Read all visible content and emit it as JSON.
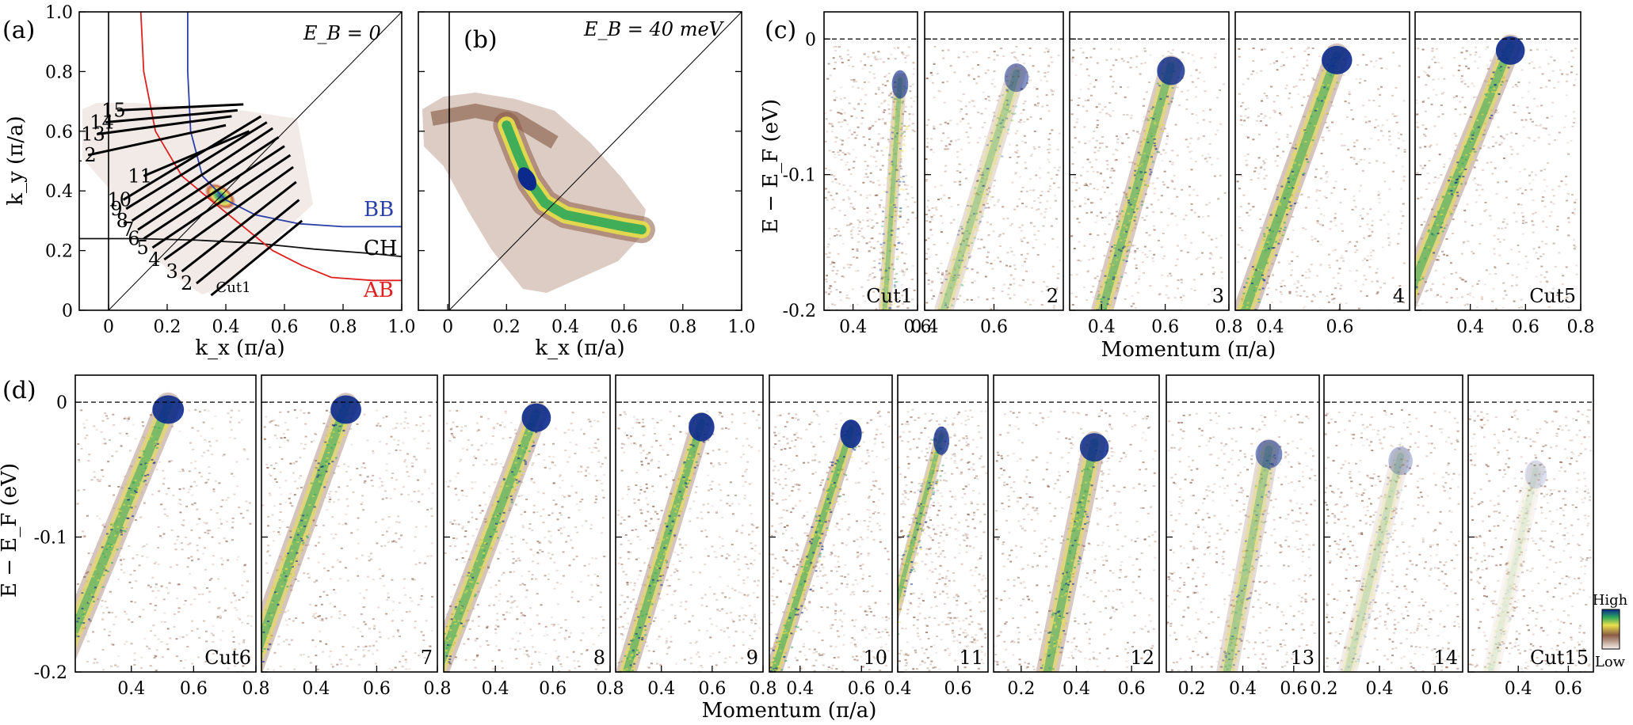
{
  "panels": {
    "a": {
      "label": "(a)",
      "eb_label": "E_B = 0",
      "xlabel": "k_x (π/a)",
      "ylabel": "k_y (π/a)",
      "xticks": [
        "0",
        "0.2",
        "0.4",
        "0.6",
        "0.8",
        "1.0"
      ],
      "yticks": [
        "0",
        "0.2",
        "0.4",
        "0.6",
        "0.8",
        "1.0"
      ],
      "curve_labels": {
        "BB": "BB",
        "CH": "CH",
        "AB": "AB"
      },
      "cut_labels": [
        "Cut1",
        "2",
        "3",
        "4",
        "5",
        "6",
        "7",
        "8",
        "9",
        "10",
        "11",
        "12",
        "13",
        "14",
        "15"
      ]
    },
    "b": {
      "label": "(b)",
      "eb_label": "E_B = 40 meV",
      "xlabel": "k_x (π/a)",
      "xticks": [
        "0",
        "0.2",
        "0.4",
        "0.6",
        "0.8",
        "1.0"
      ]
    },
    "c": {
      "label": "(c)",
      "ylabel": "E − E_F (eV)",
      "yticks": [
        "0",
        "-0.1",
        "-0.2"
      ],
      "xlabel": "Momentum (π/a)"
    },
    "d": {
      "label": "(d)",
      "ylabel": "E − E_F (eV)",
      "yticks": [
        "0",
        "-0.1",
        "-0.2"
      ],
      "xlabel": "Momentum (π/a)"
    }
  },
  "colorbar": {
    "high": "High",
    "low": "Low"
  },
  "colors": {
    "bb": "#2b3fa8",
    "ch": "#111111",
    "ab": "#e02020",
    "brown": "#8a5a44",
    "yellow": "#e8e04a",
    "green": "#2fa85a",
    "blue": "#0b2a8c"
  },
  "chart_data": [
    {
      "type": "line",
      "panel": "a",
      "title": "E_B = 0",
      "xlabel": "k_x (π/a)",
      "ylabel": "k_y (π/a)",
      "xlim": [
        -0.1,
        1.0
      ],
      "ylim": [
        0,
        1.0
      ],
      "series": [
        {
          "name": "BB",
          "x": [
            0.27,
            0.27,
            0.28,
            0.32,
            0.4,
            0.5,
            0.65,
            0.8,
            1.0
          ],
          "y": [
            1.0,
            0.8,
            0.6,
            0.45,
            0.37,
            0.32,
            0.29,
            0.28,
            0.28
          ]
        },
        {
          "name": "CH",
          "x": [
            -0.1,
            0.1,
            0.3,
            0.5,
            0.7,
            0.9,
            1.0
          ],
          "y": [
            0.24,
            0.24,
            0.235,
            0.225,
            0.205,
            0.19,
            0.18
          ]
        },
        {
          "name": "AB",
          "x": [
            0.11,
            0.12,
            0.16,
            0.25,
            0.36,
            0.46,
            0.56,
            0.66,
            0.76,
            0.9,
            1.0
          ],
          "y": [
            1.0,
            0.8,
            0.6,
            0.45,
            0.36,
            0.28,
            0.2,
            0.15,
            0.11,
            0.1,
            0.1
          ]
        },
        {
          "name": "diagonal",
          "x": [
            0,
            1.0
          ],
          "y": [
            0,
            1.0
          ]
        }
      ],
      "cuts": [
        {
          "label": "Cut1",
          "x": [
            0.35,
            0.66
          ],
          "y": [
            0.05,
            0.3
          ]
        },
        {
          "label": "2",
          "x": [
            0.3,
            0.65
          ],
          "y": [
            0.09,
            0.37
          ]
        },
        {
          "label": "3",
          "x": [
            0.25,
            0.64
          ],
          "y": [
            0.13,
            0.43
          ]
        },
        {
          "label": "4",
          "x": [
            0.19,
            0.63
          ],
          "y": [
            0.17,
            0.48
          ]
        },
        {
          "label": "5",
          "x": [
            0.15,
            0.62
          ],
          "y": [
            0.21,
            0.52
          ]
        },
        {
          "label": "6",
          "x": [
            0.12,
            0.6
          ],
          "y": [
            0.24,
            0.55
          ]
        },
        {
          "label": "7",
          "x": [
            0.1,
            0.58
          ],
          "y": [
            0.27,
            0.58
          ]
        },
        {
          "label": "8",
          "x": [
            0.08,
            0.56
          ],
          "y": [
            0.3,
            0.61
          ]
        },
        {
          "label": "9",
          "x": [
            0.06,
            0.54
          ],
          "y": [
            0.34,
            0.63
          ]
        },
        {
          "label": "10",
          "x": [
            0.05,
            0.52
          ],
          "y": [
            0.37,
            0.65
          ]
        },
        {
          "label": "11",
          "x": [
            0.12,
            0.48
          ],
          "y": [
            0.45,
            0.6
          ]
        },
        {
          "label": "12",
          "x": [
            -0.07,
            0.4
          ],
          "y": [
            0.52,
            0.62
          ]
        },
        {
          "label": "13",
          "x": [
            -0.04,
            0.42
          ],
          "y": [
            0.59,
            0.65
          ]
        },
        {
          "label": "14",
          "x": [
            -0.01,
            0.44
          ],
          "y": [
            0.63,
            0.67
          ]
        },
        {
          "label": "15",
          "x": [
            0.03,
            0.46
          ],
          "y": [
            0.67,
            0.69
          ]
        }
      ]
    },
    {
      "type": "heatmap",
      "panel": "b",
      "title": "E_B = 40 meV",
      "xlabel": "k_x (π/a)",
      "xlim": [
        -0.1,
        1.0
      ],
      "ylim": [
        0,
        1.0
      ],
      "peak_path": {
        "x": [
          0.2,
          0.24,
          0.28,
          0.33,
          0.4,
          0.5,
          0.6,
          0.66
        ],
        "y": [
          0.62,
          0.52,
          0.43,
          0.36,
          0.32,
          0.3,
          0.28,
          0.27
        ]
      }
    },
    {
      "type": "heatmap",
      "panel": "c",
      "xlabel": "Momentum (π/a)",
      "ylabel": "E − E_F (eV)",
      "ylim": [
        -0.2,
        0.02
      ],
      "cuts": [
        {
          "label": "Cut1",
          "xlim": [
            0.31,
            0.6
          ],
          "xticks": [
            0.4,
            0.6
          ],
          "kF": 0.55,
          "v": 0.07,
          "int": 0.7,
          "gap": 0.03
        },
        {
          "label": "2",
          "xlim": [
            0.4,
            0.8
          ],
          "xticks": [
            0.4,
            0.6
          ],
          "kF": 0.68,
          "v": 0.3,
          "int": 0.55,
          "gap": 0.025
        },
        {
          "label": "3",
          "xlim": [
            0.3,
            0.8
          ],
          "xticks": [
            0.4,
            0.6,
            0.8
          ],
          "kF": 0.63,
          "v": 0.3,
          "int": 0.9,
          "gap": 0.02
        },
        {
          "label": "4",
          "xlim": [
            0.3,
            0.8
          ],
          "xticks": [
            0.4,
            0.6
          ],
          "kF": 0.6,
          "v": 0.35,
          "int": 1.0,
          "gap": 0.012
        },
        {
          "label": "Cut5",
          "xlim": [
            0.2,
            0.8
          ],
          "xticks": [
            0.4,
            0.6,
            0.8
          ],
          "kF": 0.55,
          "v": 0.5,
          "int": 1.0,
          "gap": 0.005
        }
      ]
    },
    {
      "type": "heatmap",
      "panel": "d",
      "xlabel": "Momentum (π/a)",
      "ylabel": "E − E_F (eV)",
      "ylim": [
        -0.2,
        0.02
      ],
      "cuts": [
        {
          "label": "Cut6",
          "xlim": [
            0.22,
            0.8
          ],
          "xticks": [
            0.4,
            0.6,
            0.8
          ],
          "kF": 0.52,
          "v": 0.45,
          "int": 1.0,
          "gap": 0.002
        },
        {
          "label": "7",
          "xlim": [
            0.22,
            0.8
          ],
          "xticks": [
            0.4,
            0.6,
            0.8
          ],
          "kF": 0.5,
          "v": 0.4,
          "int": 1.0,
          "gap": 0.002
        },
        {
          "label": "8",
          "xlim": [
            0.22,
            0.8
          ],
          "xticks": [
            0.4,
            0.6,
            0.8
          ],
          "kF": 0.55,
          "v": 0.45,
          "int": 1.0,
          "gap": 0.008
        },
        {
          "label": "9",
          "xlim": [
            0.22,
            0.8
          ],
          "xticks": [
            0.4,
            0.6,
            0.8
          ],
          "kF": 0.57,
          "v": 0.4,
          "int": 1.0,
          "gap": 0.015
        },
        {
          "label": "10",
          "xlim": [
            0.3,
            0.7
          ],
          "xticks": [
            0.4,
            0.6
          ],
          "kF": 0.58,
          "v": 0.35,
          "int": 1.0,
          "gap": 0.02
        },
        {
          "label": "11",
          "xlim": [
            0.4,
            0.7
          ],
          "xticks": [
            0.4,
            0.6
          ],
          "kF": 0.56,
          "v": 0.3,
          "int": 0.85,
          "gap": 0.025
        },
        {
          "label": "12",
          "xlim": [
            0.1,
            0.7
          ],
          "xticks": [
            0.2,
            0.4,
            0.6
          ],
          "kF": 0.48,
          "v": 0.25,
          "int": 0.95,
          "gap": 0.03
        },
        {
          "label": "13",
          "xlim": [
            0.1,
            0.7
          ],
          "xticks": [
            0.2,
            0.4,
            0.6
          ],
          "kF": 0.52,
          "v": 0.25,
          "int": 0.6,
          "gap": 0.035
        },
        {
          "label": "14",
          "xlim": [
            0.2,
            0.7
          ],
          "xticks": [
            0.2,
            0.4,
            0.6
          ],
          "kF": 0.5,
          "v": 0.3,
          "int": 0.3,
          "gap": 0.04
        },
        {
          "label": "Cut15",
          "xlim": [
            0.2,
            0.7
          ],
          "xticks": [
            0.4,
            0.6
          ],
          "kF": 0.5,
          "v": 0.3,
          "int": 0.15,
          "gap": 0.05
        }
      ]
    }
  ]
}
